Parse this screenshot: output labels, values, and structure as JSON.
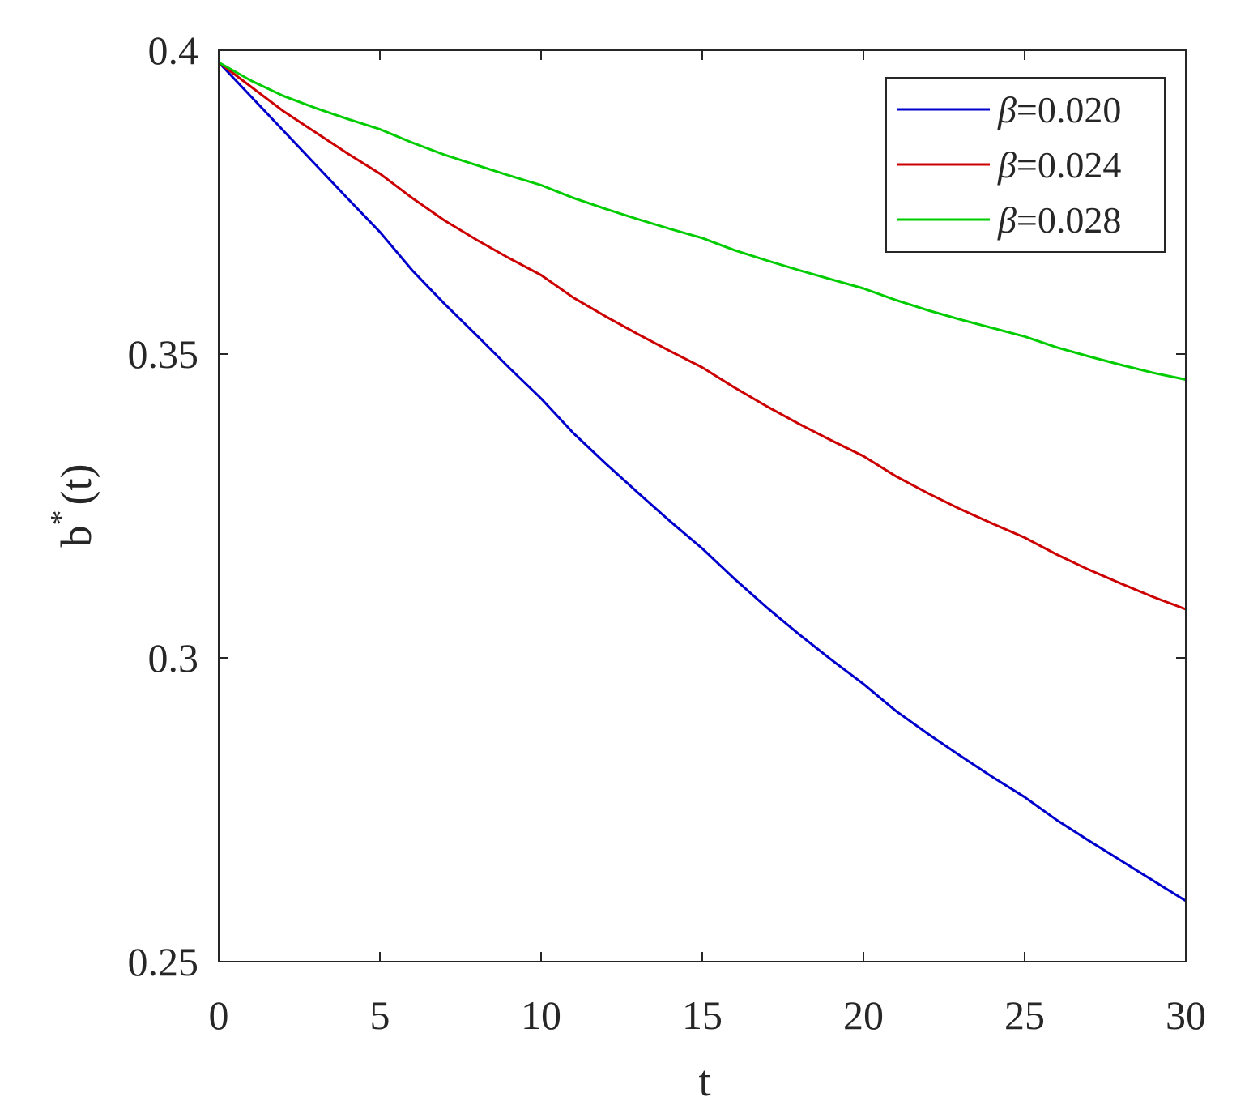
{
  "chart_data": {
    "type": "line",
    "xlabel": "t",
    "ylabel": {
      "base": "b",
      "sup": "*",
      "rest": "(t)"
    },
    "xlim": [
      0,
      30
    ],
    "ylim": [
      0.25,
      0.4
    ],
    "xticks": [
      0,
      5,
      10,
      15,
      20,
      25,
      30
    ],
    "xtick_labels": [
      "0",
      "5",
      "10",
      "15",
      "20",
      "25",
      "30"
    ],
    "yticks": [
      0.25,
      0.3,
      0.35,
      0.4
    ],
    "ytick_labels": [
      "0.25",
      "0.3",
      "0.35",
      "0.4"
    ],
    "grid": false,
    "legend_position": "top-right",
    "x": [
      0,
      1,
      2,
      3,
      4,
      5,
      6,
      7,
      8,
      9,
      10,
      11,
      12,
      13,
      14,
      15,
      16,
      17,
      18,
      19,
      20,
      21,
      22,
      23,
      24,
      25,
      26,
      27,
      28,
      29,
      30
    ],
    "series": [
      {
        "symbol": "β",
        "value_label": "=0.020",
        "color": "#0000cc",
        "values": [
          0.398,
          0.3924,
          0.3868,
          0.3812,
          0.3756,
          0.3701,
          0.3638,
          0.3583,
          0.3531,
          0.3478,
          0.3427,
          0.337,
          0.332,
          0.3272,
          0.3225,
          0.318,
          0.313,
          0.3083,
          0.3039,
          0.2997,
          0.2957,
          0.2913,
          0.2875,
          0.2839,
          0.2804,
          0.2771,
          0.2733,
          0.2699,
          0.2666,
          0.2633,
          0.26
        ]
      },
      {
        "symbol": "β",
        "value_label": "=0.024",
        "color": "#cc0000",
        "values": [
          0.398,
          0.394,
          0.39,
          0.3865,
          0.383,
          0.3797,
          0.3757,
          0.372,
          0.3688,
          0.3658,
          0.363,
          0.3593,
          0.3562,
          0.3533,
          0.3505,
          0.3478,
          0.3445,
          0.3414,
          0.3385,
          0.3358,
          0.3332,
          0.3299,
          0.3271,
          0.3245,
          0.3221,
          0.3198,
          0.317,
          0.3145,
          0.3122,
          0.31,
          0.308
        ]
      },
      {
        "symbol": "β",
        "value_label": "=0.028",
        "color": "#00cc00",
        "values": [
          0.398,
          0.395,
          0.3925,
          0.3905,
          0.3887,
          0.387,
          0.3848,
          0.3828,
          0.3811,
          0.3794,
          0.3778,
          0.3757,
          0.3739,
          0.3722,
          0.3706,
          0.3691,
          0.3671,
          0.3654,
          0.3638,
          0.3623,
          0.3608,
          0.3589,
          0.3572,
          0.3557,
          0.3543,
          0.3529,
          0.3511,
          0.3496,
          0.3482,
          0.3469,
          0.3458
        ]
      }
    ]
  }
}
